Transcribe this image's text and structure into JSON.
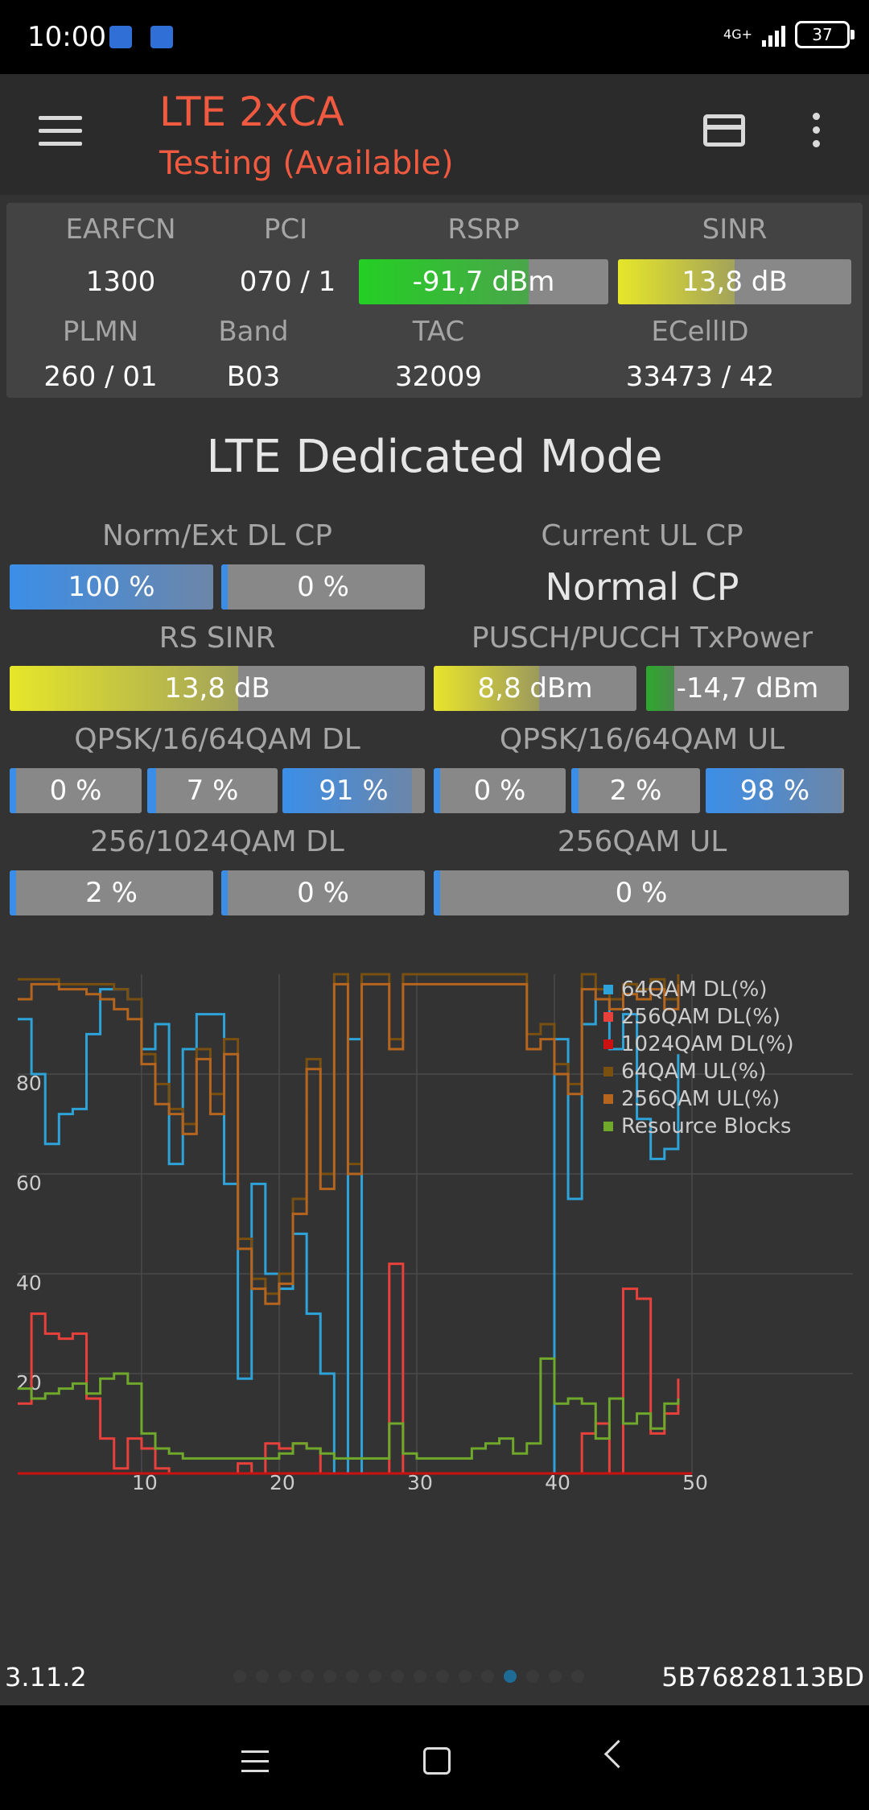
{
  "status_bar": {
    "time": "10:00",
    "network": "4G+",
    "battery": "37"
  },
  "app_bar": {
    "title": "LTE 2xCA",
    "subtitle": "Testing (Available)",
    "icons": [
      "menu-icon",
      "sim-card-icon",
      "more-vert-icon"
    ]
  },
  "info": {
    "earfcn_label": "EARFCN",
    "earfcn": "1300",
    "pci_label": "PCI",
    "pci": "070 / 1",
    "rsrp_label": "RSRP",
    "rsrp": "-91,7 dBm",
    "rsrp_level": 0.68,
    "sinr_label": "SINR",
    "sinr": "13,8 dB",
    "sinr_level": 0.5,
    "plmn_label": "PLMN",
    "plmn": "260 / 01",
    "band_label": "Band",
    "band": "B03",
    "tac_label": "TAC",
    "tac": "32009",
    "ecellid_label": "ECellID",
    "ecellid": "33473 / 42"
  },
  "section_title": "LTE Dedicated Mode",
  "metrics": {
    "dl_cp_label": "Norm/Ext DL CP",
    "dl_cp_norm": "100 %",
    "dl_cp_ext": "0 %",
    "ul_cp_label": "Current UL CP",
    "ul_cp_value": "Normal CP",
    "rs_sinr_label": "RS SINR",
    "rs_sinr": "13,8 dB",
    "rs_sinr_level": 0.55,
    "txpower_label": "PUSCH/PUCCH TxPower",
    "pusch": "8,8 dBm",
    "pucch": "-14,7 dBm",
    "qam_dl_label": "QPSK/16/64QAM DL",
    "qam_dl": [
      "0 %",
      "7 %",
      "91 %"
    ],
    "qam_ul_label": "QPSK/16/64QAM UL",
    "qam_ul": [
      "0 %",
      "2 %",
      "98 %"
    ],
    "qam256_dl_label": "256/1024QAM DL",
    "qam256_dl": [
      "2 %",
      "0 %"
    ],
    "qam256_ul_label": "256QAM UL",
    "qam256_ul": "0 %"
  },
  "chart_data": {
    "type": "line",
    "x_ticks": [
      "10",
      "20",
      "30",
      "40",
      "50"
    ],
    "y_ticks": [
      "80",
      "60",
      "40",
      "20"
    ],
    "xlim": [
      1,
      50
    ],
    "ylim": [
      0,
      100
    ],
    "grid": true,
    "legend_position": "top-right",
    "series": [
      {
        "name": "64QAM DL(%)",
        "color": "#2ea3d9",
        "x": [
          1,
          2,
          3,
          4,
          5,
          6,
          7,
          8,
          9,
          10,
          11,
          12,
          13,
          14,
          15,
          16,
          17,
          18,
          19,
          20,
          21,
          22,
          23,
          24,
          25,
          26,
          27,
          28,
          29,
          30,
          31,
          32,
          33,
          34,
          35,
          36,
          37,
          38,
          39,
          40,
          41,
          42,
          43,
          44,
          45,
          46,
          47,
          48,
          49
        ],
        "y": [
          91,
          80,
          66,
          72,
          73,
          88,
          97,
          97,
          95,
          85,
          90,
          62,
          85,
          92,
          92,
          58,
          19,
          58,
          40,
          37,
          48,
          32,
          20,
          0,
          87,
          0,
          0,
          0,
          0,
          0,
          0,
          0,
          0,
          0,
          0,
          0,
          0,
          0,
          0,
          87,
          55,
          90,
          95,
          85,
          92,
          71,
          63,
          65,
          84
        ]
      },
      {
        "name": "256QAM DL(%)",
        "color": "#e8413c",
        "x": [
          1,
          2,
          3,
          4,
          5,
          6,
          7,
          8,
          9,
          10,
          11,
          12,
          13,
          14,
          15,
          16,
          17,
          18,
          19,
          20,
          21,
          22,
          23,
          24,
          25,
          26,
          27,
          28,
          29,
          30,
          31,
          32,
          33,
          34,
          35,
          36,
          37,
          38,
          39,
          40,
          41,
          42,
          43,
          44,
          45,
          46,
          47,
          48,
          49
        ],
        "y": [
          14,
          32,
          28,
          27,
          28,
          15,
          7,
          1,
          7,
          5,
          1,
          0,
          0,
          0,
          0,
          0,
          2,
          0,
          6,
          5,
          6,
          5,
          0,
          0,
          0,
          0,
          0,
          42,
          0,
          0,
          0,
          0,
          0,
          0,
          0,
          0,
          0,
          0,
          0,
          0,
          0,
          8,
          10,
          0,
          37,
          35,
          8,
          12,
          19
        ]
      },
      {
        "name": "1024QAM DL(%)",
        "color": "#cc1111",
        "x": [
          1,
          10,
          20,
          30,
          40,
          50
        ],
        "y": [
          0,
          0,
          0,
          0,
          0,
          0
        ]
      },
      {
        "name": "64QAM UL(%)",
        "color": "#7a5010",
        "x": [
          1,
          2,
          3,
          4,
          5,
          6,
          7,
          8,
          9,
          10,
          11,
          12,
          13,
          14,
          15,
          16,
          17,
          18,
          19,
          20,
          21,
          22,
          23,
          24,
          25,
          26,
          27,
          28,
          29,
          30,
          31,
          32,
          33,
          34,
          35,
          36,
          37,
          38,
          39,
          40,
          41,
          42,
          43,
          44,
          45,
          46,
          47,
          48,
          49
        ],
        "y": [
          99,
          99,
          99,
          98,
          98,
          98,
          98,
          97,
          95,
          84,
          78,
          73,
          70,
          85,
          76,
          87,
          47,
          39,
          36,
          40,
          55,
          83,
          60,
          100,
          62,
          100,
          100,
          87,
          100,
          100,
          100,
          100,
          100,
          100,
          100,
          100,
          100,
          88,
          90,
          82,
          78,
          100,
          97,
          95,
          98,
          97,
          99,
          95,
          100
        ]
      },
      {
        "name": "256QAM UL(%)",
        "color": "#b5651d",
        "x": [
          1,
          2,
          3,
          4,
          5,
          6,
          7,
          8,
          9,
          10,
          11,
          12,
          13,
          14,
          15,
          16,
          17,
          18,
          19,
          20,
          21,
          22,
          23,
          24,
          25,
          26,
          27,
          28,
          29,
          30,
          31,
          32,
          33,
          34,
          35,
          36,
          37,
          38,
          39,
          40,
          41,
          42,
          43,
          44,
          45,
          46,
          47,
          48,
          49
        ],
        "y": [
          95,
          98,
          98,
          97,
          97,
          96,
          95,
          93,
          91,
          82,
          74,
          72,
          68,
          83,
          72,
          84,
          45,
          37,
          34,
          38,
          52,
          81,
          57,
          98,
          60,
          98,
          98,
          85,
          98,
          98,
          98,
          98,
          98,
          98,
          98,
          98,
          98,
          85,
          87,
          80,
          76,
          97,
          95,
          93,
          96,
          95,
          97,
          93,
          98
        ]
      },
      {
        "name": "Resource Blocks",
        "color": "#6fa82a",
        "x": [
          1,
          2,
          3,
          4,
          5,
          6,
          7,
          8,
          9,
          10,
          11,
          12,
          13,
          14,
          15,
          16,
          17,
          18,
          19,
          20,
          21,
          22,
          23,
          24,
          25,
          26,
          27,
          28,
          29,
          30,
          31,
          32,
          33,
          34,
          35,
          36,
          37,
          38,
          39,
          40,
          41,
          42,
          43,
          44,
          45,
          46,
          47,
          48,
          49
        ],
        "y": [
          17,
          15,
          16,
          17,
          18,
          16,
          19,
          20,
          18,
          8,
          5,
          4,
          3,
          3,
          3,
          3,
          3,
          3,
          3,
          4,
          6,
          5,
          4,
          3,
          3,
          3,
          3,
          10,
          4,
          3,
          3,
          3,
          3,
          5,
          6,
          7,
          4,
          6,
          23,
          14,
          15,
          14,
          7,
          15,
          10,
          12,
          9,
          14,
          15
        ]
      }
    ]
  },
  "footer": {
    "version": "3.11.2",
    "device_id": "5B76828113BD",
    "page_count": 16,
    "active_page": 12
  }
}
